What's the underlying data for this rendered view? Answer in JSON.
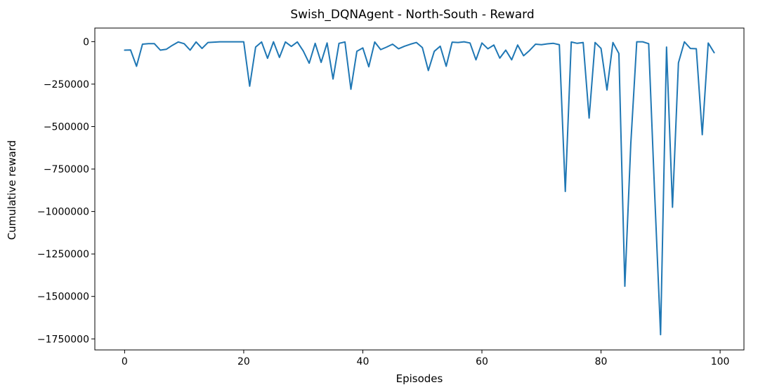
{
  "chart_data": {
    "type": "line",
    "title": "Swish_DQNAgent - North-South - Reward",
    "xlabel": "Episodes",
    "ylabel": "Cumulative reward",
    "xlim": [
      -5,
      104
    ],
    "ylim": [
      -1815000,
      80000
    ],
    "xticks": [
      0,
      20,
      40,
      60,
      80,
      100
    ],
    "xtick_labels": [
      "0",
      "20",
      "40",
      "60",
      "80",
      "100"
    ],
    "yticks": [
      0,
      -250000,
      -500000,
      -750000,
      -1000000,
      -1250000,
      -1500000,
      -1750000
    ],
    "ytick_labels": [
      "0",
      "−250000",
      "−500000",
      "−750000",
      "−1000000",
      "−1250000",
      "−1500000",
      "−1750000"
    ],
    "grid": false,
    "legend": "none",
    "series": [
      {
        "color": "#1f77b4",
        "x": [
          0,
          1,
          2,
          3,
          4,
          5,
          6,
          7,
          8,
          9,
          10,
          11,
          12,
          13,
          14,
          15,
          16,
          17,
          18,
          19,
          20,
          21,
          22,
          23,
          24,
          25,
          26,
          27,
          28,
          29,
          30,
          31,
          32,
          33,
          34,
          35,
          36,
          37,
          38,
          39,
          40,
          41,
          42,
          43,
          44,
          45,
          46,
          47,
          48,
          49,
          50,
          51,
          52,
          53,
          54,
          55,
          56,
          57,
          58,
          59,
          60,
          61,
          62,
          63,
          64,
          65,
          66,
          67,
          68,
          69,
          70,
          71,
          72,
          73,
          74,
          75,
          76,
          77,
          78,
          79,
          80,
          81,
          82,
          83,
          84,
          85,
          86,
          87,
          88,
          89,
          90,
          91,
          92,
          93,
          94,
          95,
          96,
          97,
          98,
          99
        ],
        "values": [
          -50000,
          -49000,
          -145000,
          -15000,
          -12000,
          -12000,
          -50000,
          -45000,
          -22000,
          -2000,
          -12000,
          -50000,
          -2000,
          -40000,
          -5000,
          -3000,
          -1000,
          -1000,
          -1000,
          -1000,
          -1000,
          -262000,
          -32000,
          -2000,
          -98000,
          -1000,
          -93000,
          -2000,
          -28000,
          -2000,
          -55000,
          -127000,
          -10000,
          -122000,
          -8000,
          -220000,
          -10000,
          -2000,
          -280000,
          -57000,
          -37000,
          -148000,
          -2000,
          -47000,
          -32000,
          -15000,
          -42000,
          -27000,
          -15000,
          -5000,
          -35000,
          -170000,
          -57000,
          -27000,
          -145000,
          -3000,
          -5000,
          -1000,
          -8000,
          -107000,
          -8000,
          -42000,
          -20000,
          -97000,
          -50000,
          -107000,
          -20000,
          -83000,
          -52000,
          -15000,
          -18000,
          -13000,
          -10000,
          -18000,
          -882000,
          -2000,
          -10000,
          -5000,
          -450000,
          -5000,
          -40000,
          -285000,
          -5000,
          -70000,
          -1440000,
          -600000,
          -1000,
          -1000,
          -12000,
          -890000,
          -1725000,
          -32000,
          -975000,
          -125000,
          -1000,
          -40000,
          -42000,
          -548000,
          -8000,
          -65000
        ]
      }
    ]
  }
}
